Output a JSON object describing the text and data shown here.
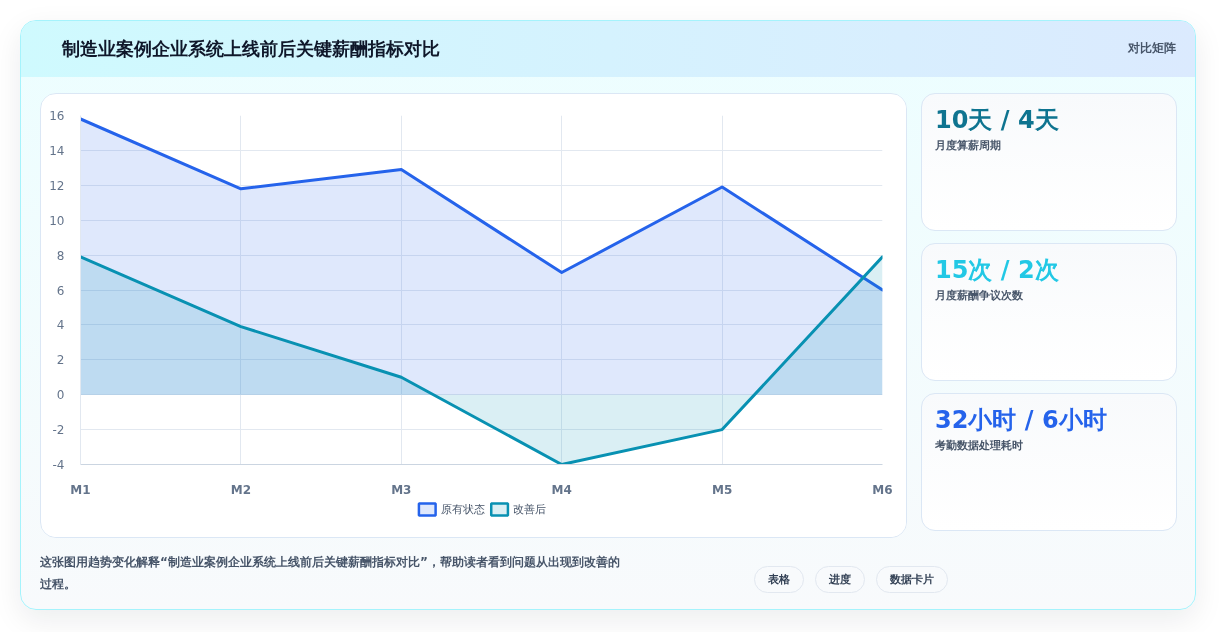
{
  "chart_data": [
    {
      "type": "area",
      "title": "制造业案例企业系统上线前后关键薪酬指标对比",
      "categories": [
        "M1",
        "M2",
        "M3",
        "M4",
        "M5",
        "M6"
      ],
      "series": [
        {
          "name": "原有状态",
          "color": "#2563eb",
          "values": [
            15.8,
            11.8,
            12.9,
            7,
            11.9,
            6
          ]
        },
        {
          "name": "改善后",
          "color": "#0891b2",
          "values": [
            7.9,
            3.9,
            1,
            -4,
            -2,
            7.9
          ]
        }
      ],
      "ylim": [
        -4,
        16
      ],
      "yticks": [
        -4,
        -2,
        0,
        2,
        4,
        6,
        8,
        10,
        12,
        14,
        16
      ],
      "grid": true,
      "legend": "bottom",
      "annotations": [
        "这张图用趋势变化解释“制造业案例企业系统上线前后关键薪酬指标对比”，帮助读者看到问题从出现到改善的过程。",
        "表格",
        "进度",
        "数据卡片"
      ]
    },
    {
      "type": "other",
      "title": "10天 / 4天",
      "subtitle": "月度算薪周期",
      "color": "#0e7490",
      "annotations": [
        "对比矩阵"
      ]
    },
    {
      "type": "other",
      "title": "15次 / 2次",
      "subtitle": "月度薪酬争议次数",
      "color": "#22c8e5"
    },
    {
      "type": "other",
      "title": "32小时 / 6小时",
      "subtitle": "考勤数据处理耗时",
      "color": "#2563eb"
    }
  ]
}
